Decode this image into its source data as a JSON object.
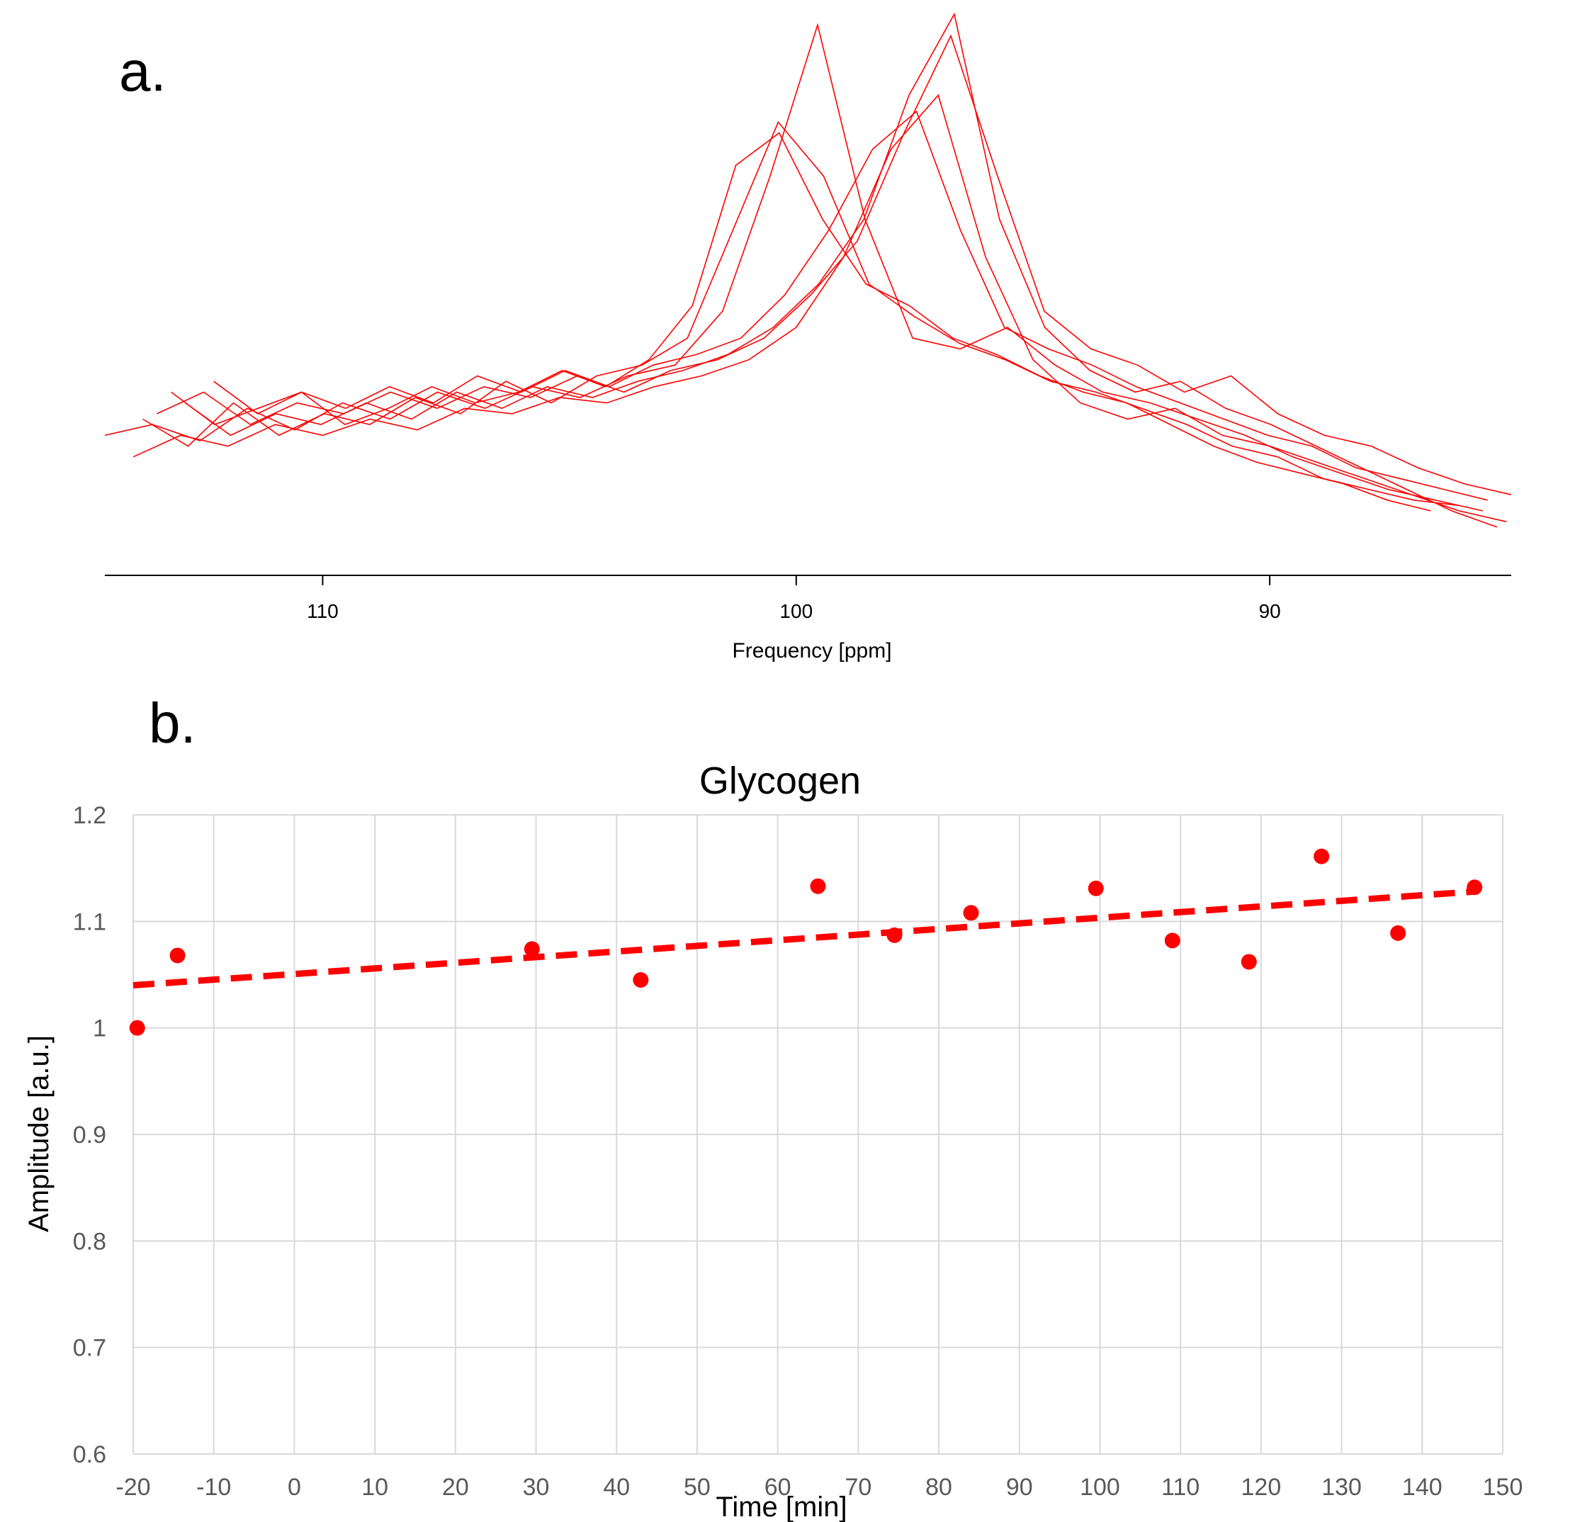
{
  "panel_a": {
    "label": "a."
  },
  "panel_b": {
    "label": "b."
  },
  "chart_data": [
    {
      "type": "line",
      "xlabel": "Frequency [ppm]",
      "ylabel": "",
      "title": "",
      "x_reversed": true,
      "xlim": [
        114.6,
        84.9
      ],
      "x_ticks": [
        110,
        100,
        90
      ],
      "y_axis_shown": false,
      "grid": false,
      "color": "#ff0000",
      "series": [
        {
          "peak_ppm": 100.6,
          "x_start": 114.6,
          "x_end": 85.5,
          "peak": 0.98,
          "values": [
            0.22,
            0.24,
            0.21,
            0.27,
            0.23,
            0.28,
            0.25,
            0.3,
            0.27,
            0.31,
            0.29,
            0.33,
            0.35,
            0.45,
            0.7,
            0.98,
            0.62,
            0.4,
            0.38,
            0.42,
            0.35,
            0.3,
            0.28,
            0.25,
            0.22,
            0.18,
            0.15,
            0.12,
            0.1,
            0.08
          ]
        },
        {
          "peak_ppm": 101.2,
          "x_start": 113.8,
          "x_end": 86.0,
          "peak": 0.8,
          "values": [
            0.25,
            0.2,
            0.28,
            0.22,
            0.26,
            0.24,
            0.29,
            0.26,
            0.32,
            0.28,
            0.33,
            0.35,
            0.4,
            0.6,
            0.8,
            0.7,
            0.5,
            0.44,
            0.39,
            0.36,
            0.32,
            0.3,
            0.27,
            0.24,
            0.2,
            0.18,
            0.14,
            0.12,
            0.1,
            0.09
          ]
        },
        {
          "peak_ppm": 101.7,
          "x_start": 113.2,
          "x_end": 86.6,
          "peak": 0.78,
          "values": [
            0.3,
            0.24,
            0.27,
            0.3,
            0.24,
            0.27,
            0.31,
            0.28,
            0.3,
            0.34,
            0.31,
            0.36,
            0.46,
            0.72,
            0.78,
            0.62,
            0.5,
            0.46,
            0.4,
            0.37,
            0.33,
            0.3,
            0.28,
            0.24,
            0.2,
            0.17,
            0.15,
            0.13,
            0.1,
            0.08
          ]
        },
        {
          "peak_ppm": 99.0,
          "x_start": 114.0,
          "x_end": 85.0,
          "peak": 0.85,
          "values": [
            0.18,
            0.22,
            0.2,
            0.24,
            0.22,
            0.25,
            0.23,
            0.27,
            0.26,
            0.29,
            0.28,
            0.31,
            0.33,
            0.36,
            0.42,
            0.55,
            0.75,
            0.85,
            0.55,
            0.36,
            0.28,
            0.25,
            0.27,
            0.22,
            0.2,
            0.17,
            0.14,
            0.11,
            0.08,
            0.06
          ]
        },
        {
          "peak_ppm": 98.4,
          "x_start": 112.9,
          "x_end": 85.2,
          "peak": 1.0,
          "values": [
            0.28,
            0.22,
            0.26,
            0.24,
            0.28,
            0.25,
            0.3,
            0.27,
            0.31,
            0.29,
            0.32,
            0.34,
            0.37,
            0.42,
            0.5,
            0.62,
            0.85,
            1.0,
            0.62,
            0.42,
            0.34,
            0.3,
            0.32,
            0.27,
            0.24,
            0.2,
            0.16,
            0.12,
            0.08,
            0.05
          ]
        },
        {
          "peak_ppm": 98.0,
          "x_start": 113.5,
          "x_end": 84.9,
          "peak": 0.96,
          "values": [
            0.26,
            0.3,
            0.24,
            0.28,
            0.26,
            0.3,
            0.27,
            0.31,
            0.29,
            0.33,
            0.3,
            0.34,
            0.36,
            0.4,
            0.48,
            0.58,
            0.78,
            0.96,
            0.7,
            0.45,
            0.38,
            0.35,
            0.3,
            0.33,
            0.26,
            0.22,
            0.2,
            0.16,
            0.13,
            0.11
          ]
        },
        {
          "peak_ppm": 99.5,
          "x_start": 112.3,
          "x_end": 85.4,
          "peak": 0.82,
          "values": [
            0.32,
            0.26,
            0.3,
            0.27,
            0.31,
            0.28,
            0.33,
            0.3,
            0.34,
            0.31,
            0.35,
            0.37,
            0.4,
            0.48,
            0.6,
            0.75,
            0.82,
            0.6,
            0.42,
            0.38,
            0.35,
            0.31,
            0.28,
            0.25,
            0.22,
            0.2,
            0.16,
            0.14,
            0.12,
            0.1
          ]
        }
      ]
    },
    {
      "type": "scatter",
      "title": "Glycogen",
      "xlabel": "Time [min]",
      "ylabel": "Amplitude [a.u.]",
      "xlim": [
        -20,
        150
      ],
      "ylim": [
        0.6,
        1.2
      ],
      "x_ticks": [
        -20,
        -10,
        0,
        10,
        20,
        30,
        40,
        50,
        60,
        70,
        80,
        90,
        100,
        110,
        120,
        130,
        140,
        150
      ],
      "y_ticks": [
        0.6,
        0.7,
        0.8,
        0.9,
        1,
        1.1,
        1.2
      ],
      "grid": true,
      "color": "#ff0000",
      "points": [
        {
          "x": -19.5,
          "y": 1.0
        },
        {
          "x": -14.5,
          "y": 1.068
        },
        {
          "x": 29.5,
          "y": 1.074
        },
        {
          "x": 43.0,
          "y": 1.045
        },
        {
          "x": 65.0,
          "y": 1.133
        },
        {
          "x": 74.5,
          "y": 1.087
        },
        {
          "x": 84.0,
          "y": 1.108
        },
        {
          "x": 99.5,
          "y": 1.131
        },
        {
          "x": 109.0,
          "y": 1.082
        },
        {
          "x": 118.5,
          "y": 1.062
        },
        {
          "x": 127.5,
          "y": 1.161
        },
        {
          "x": 137.0,
          "y": 1.089
        },
        {
          "x": 146.5,
          "y": 1.132
        }
      ],
      "trendline": {
        "style": "dashed",
        "x0": -20,
        "y0": 1.04,
        "x1": 146.5,
        "y1": 1.128
      }
    }
  ]
}
